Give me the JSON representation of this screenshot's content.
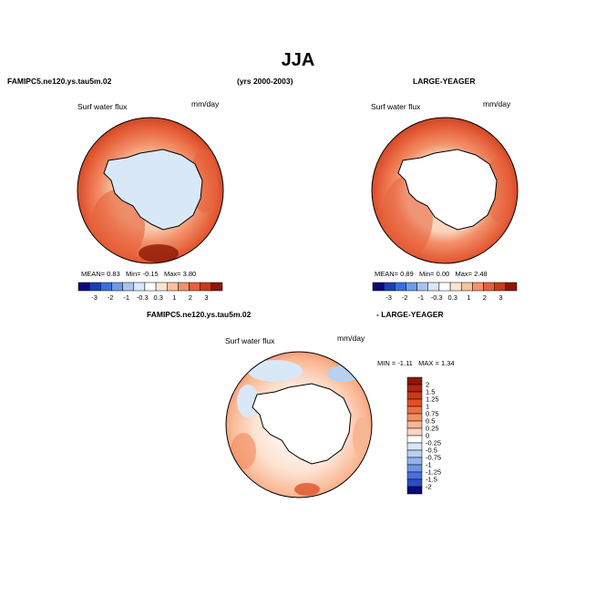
{
  "page": {
    "title": "JJA",
    "case_left": "FAMIPC5.ne120.ys.tau5m.02",
    "years": "(yrs 2000-2003)",
    "case_right": "LARGE-YEAGER",
    "diff_case": "FAMIPC5.ne120.ys.tau5m.02",
    "diff_obs": "- LARGE-YEAGER"
  },
  "chart_data": [
    {
      "type": "heatmap",
      "projection": "south-polar-stereographic",
      "variable": "Surf water flux",
      "units": "mm/day",
      "stats": {
        "mean_label": "MEAN=",
        "mean": "0.83",
        "min_label": "Min=",
        "min": "-0.15",
        "max_label": "Max=",
        "max": "3.80"
      },
      "colorbar_ticks": [
        "-3",
        "-2",
        "-1",
        "-0.3",
        "0.3",
        "1",
        "2",
        "3"
      ],
      "colorbar_colors": [
        "#0a0a7a",
        "#1a3fb8",
        "#3a6de0",
        "#6f9ae8",
        "#a8c4ee",
        "#d9e8f7",
        "#ffffff",
        "#fde4d3",
        "#f9c0a0",
        "#f2916a",
        "#e6603a",
        "#c83a1c",
        "#8f1606"
      ]
    },
    {
      "type": "heatmap",
      "projection": "south-polar-stereographic",
      "variable": "Surf water flux",
      "units": "mm/day",
      "stats": {
        "mean_label": "MEAN=",
        "mean": "0.89",
        "min_label": "Min=",
        "min": "0.00",
        "max_label": "Max=",
        "max": "2.48"
      },
      "colorbar_ticks": [
        "-3",
        "-2",
        "-1",
        "-0.3",
        "0.3",
        "1",
        "2",
        "3"
      ],
      "colorbar_colors": [
        "#0a0a7a",
        "#1a3fb8",
        "#3a6de0",
        "#6f9ae8",
        "#a8c4ee",
        "#d9e8f7",
        "#ffffff",
        "#fde4d3",
        "#f9c0a0",
        "#f2916a",
        "#e6603a",
        "#c83a1c",
        "#8f1606"
      ]
    },
    {
      "type": "heatmap",
      "projection": "south-polar-stereographic",
      "variable": "Surf water flux",
      "units": "mm/day",
      "stats": {
        "min_label": "MIN =",
        "min": "-1.11",
        "max_label": "MAX =",
        "max": "1.34"
      },
      "colorbar_ticks": [
        "2",
        "1.5",
        "1.25",
        "1",
        "0.75",
        "0.5",
        "0.25",
        "0",
        "-0.25",
        "-0.5",
        "-0.75",
        "-1",
        "-1.25",
        "-1.5",
        "-2"
      ],
      "colorbar_colors": [
        "#8f1606",
        "#b0250e",
        "#c83a1c",
        "#e0512c",
        "#ec6f45",
        "#f59068",
        "#f9b692",
        "#fcd6bf",
        "#ffffff",
        "#d9e8f7",
        "#b8d0f2",
        "#93b4ee",
        "#6f94e6",
        "#4a70dc",
        "#2a4fc8",
        "#0a0a7a"
      ]
    }
  ]
}
